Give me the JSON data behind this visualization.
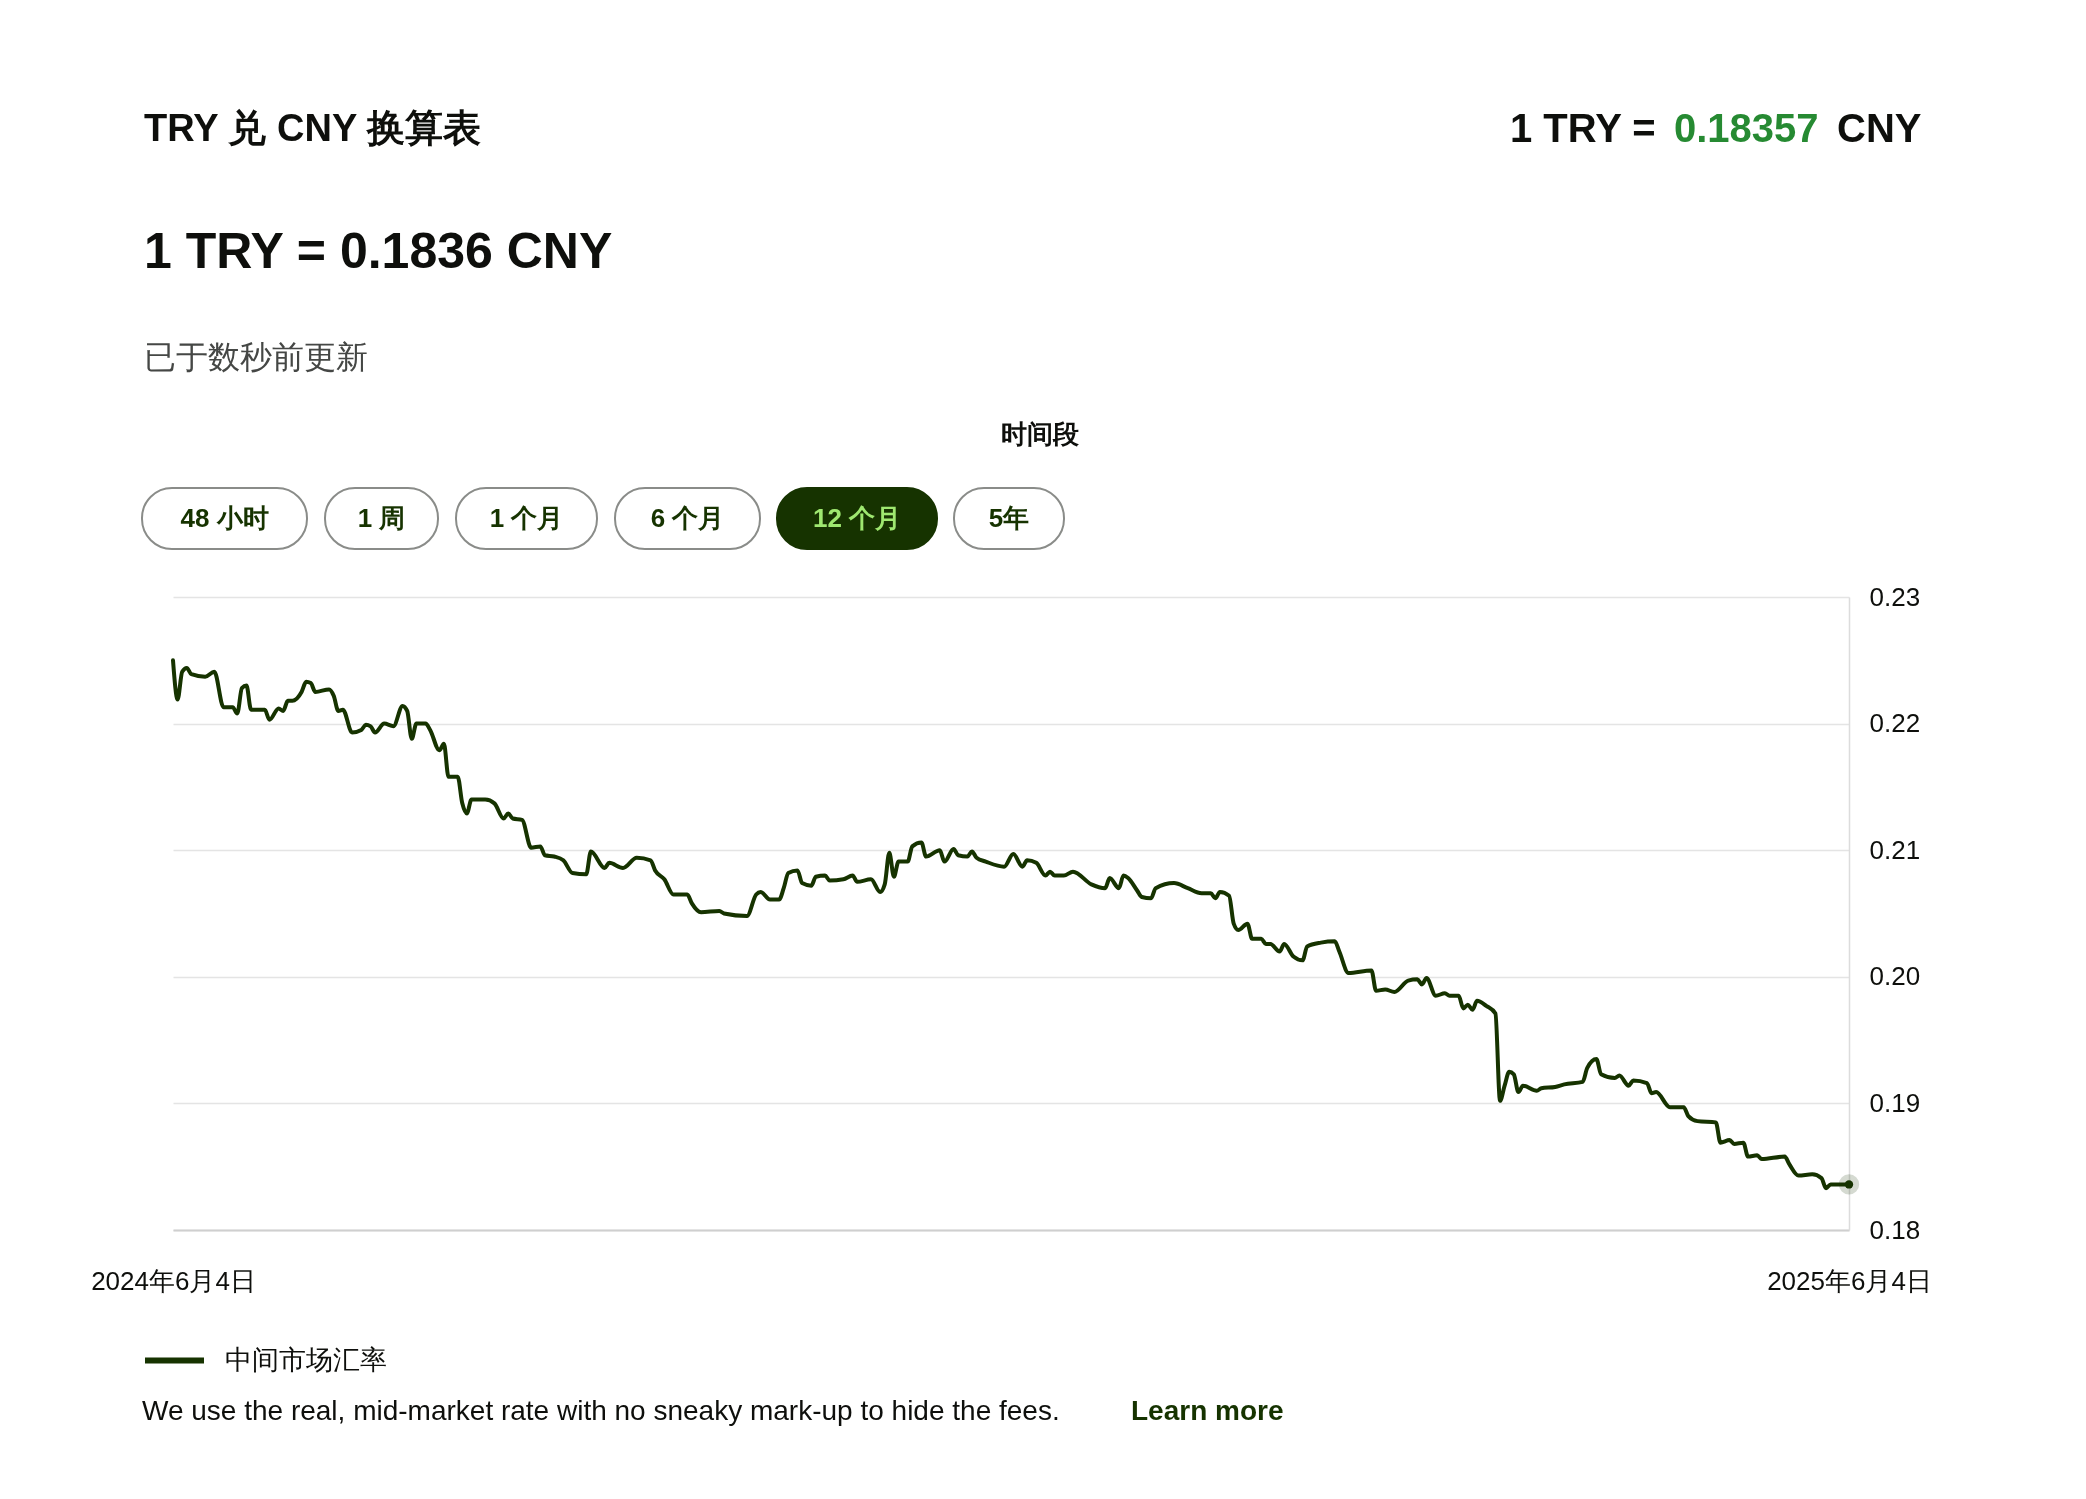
{
  "chart_data": {
    "type": "line",
    "title": "TRY 兑 CNY 换算表",
    "subtitle": "1 TRY = 0.1836 CNY",
    "annotations": [
      "1 TRY =",
      "0.18357",
      "CNY",
      "已于数秒前更新",
      "时间段",
      "48 小时",
      "1 周",
      "1 个月",
      "6 个月",
      "12 个月",
      "5年",
      "We use the real, mid-market rate with no sneaky mark-up to hide the fees.",
      "Learn more"
    ],
    "series": [
      {
        "name": "中间市场汇率",
        "color": "#163300",
        "x": [
          "2024-06-04",
          "2024-06-05",
          "2024-06-06",
          "2024-06-07",
          "2024-06-08",
          "2024-06-11",
          "2024-06-13",
          "2024-06-15",
          "2024-06-17",
          "2024-06-18",
          "2024-06-19",
          "2024-06-20",
          "2024-06-21",
          "2024-06-24",
          "2024-06-25",
          "2024-06-27",
          "2024-06-28",
          "2024-06-29",
          "2024-06-30",
          "2024-07-02",
          "2024-07-03",
          "2024-07-04",
          "2024-07-05",
          "2024-07-08",
          "2024-07-09",
          "2024-07-10",
          "2024-07-11",
          "2024-07-13",
          "2024-07-15",
          "2024-07-16",
          "2024-07-17",
          "2024-07-18",
          "2024-07-20",
          "2024-07-22",
          "2024-07-24",
          "2024-07-25",
          "2024-07-26",
          "2024-07-27",
          "2024-07-29",
          "2024-07-30",
          "2024-08-01",
          "2024-08-02",
          "2024-08-03",
          "2024-08-05",
          "2024-08-06",
          "2024-08-07",
          "2024-08-08",
          "2024-08-11",
          "2024-08-13",
          "2024-08-15",
          "2024-08-16",
          "2024-08-17",
          "2024-08-19",
          "2024-08-21",
          "2024-08-23",
          "2024-08-24",
          "2024-08-26",
          "2024-08-28",
          "2024-08-30",
          "2024-09-02",
          "2024-09-03",
          "2024-09-06",
          "2024-09-07",
          "2024-09-10",
          "2024-09-13",
          "2024-09-16",
          "2024-09-17",
          "2024-09-19",
          "2024-09-21",
          "2024-09-24",
          "2024-09-25",
          "2024-09-27",
          "2024-10-01",
          "2024-10-02",
          "2024-10-07",
          "2024-10-09",
          "2024-10-10",
          "2024-10-12",
          "2024-10-14",
          "2024-10-15",
          "2024-10-16",
          "2024-10-18",
          "2024-10-19",
          "2024-10-21",
          "2024-10-22",
          "2024-10-24",
          "2024-10-25",
          "2024-10-28",
          "2024-10-30",
          "2024-10-31",
          "2024-11-03",
          "2024-11-05",
          "2024-11-06",
          "2024-11-07",
          "2024-11-08",
          "2024-11-09",
          "2024-11-11",
          "2024-11-12",
          "2024-11-14",
          "2024-11-15",
          "2024-11-18",
          "2024-11-19",
          "2024-11-21",
          "2024-11-22",
          "2024-11-24",
          "2024-11-25",
          "2024-11-26",
          "2024-11-28",
          "2024-12-02",
          "2024-12-04",
          "2024-12-06",
          "2024-12-07",
          "2024-12-09",
          "2024-12-11",
          "2024-12-12",
          "2024-12-13",
          "2024-12-15",
          "2024-12-17",
          "2024-12-21",
          "2024-12-24",
          "2024-12-25",
          "2024-12-27",
          "2024-12-28",
          "2024-12-29",
          "2024-12-31",
          "2025-01-01",
          "2025-01-03",
          "2025-01-04",
          "2025-01-08",
          "2025-01-11",
          "2025-01-14",
          "2025-01-16",
          "2025-01-17",
          "2025-01-18",
          "2025-01-20",
          "2025-01-21",
          "2025-01-22",
          "2025-01-24",
          "2025-01-25",
          "2025-01-27",
          "2025-01-28",
          "2025-01-29",
          "2025-01-31",
          "2025-02-01",
          "2025-02-03",
          "2025-02-05",
          "2025-02-06",
          "2025-02-09",
          "2025-02-12",
          "2025-02-13",
          "2025-02-15",
          "2025-02-20",
          "2025-02-21",
          "2025-02-23",
          "2025-02-25",
          "2025-02-28",
          "2025-03-02",
          "2025-03-03",
          "2025-03-04",
          "2025-03-06",
          "2025-03-08",
          "2025-03-09",
          "2025-03-11",
          "2025-03-12",
          "2025-03-13",
          "2025-03-14",
          "2025-03-15",
          "2025-03-17",
          "2025-03-19",
          "2025-03-20",
          "2025-03-21",
          "2025-03-22",
          "2025-03-23",
          "2025-03-24",
          "2025-03-25",
          "2025-03-28",
          "2025-03-29",
          "2025-04-01",
          "2025-04-03",
          "2025-04-07",
          "2025-04-08",
          "2025-04-10",
          "2025-04-11",
          "2025-04-14",
          "2025-04-15",
          "2025-04-17",
          "2025-04-18",
          "2025-04-21",
          "2025-04-22",
          "2025-04-23",
          "2025-04-26",
          "2025-04-29",
          "2025-04-30",
          "2025-05-02",
          "2025-05-06",
          "2025-05-07",
          "2025-05-09",
          "2025-05-10",
          "2025-05-12",
          "2025-05-13",
          "2025-05-15",
          "2025-05-16",
          "2025-05-21",
          "2025-05-22",
          "2025-05-24",
          "2025-05-27",
          "2025-05-29",
          "2025-05-30",
          "2025-05-31",
          "2025-06-04"
        ],
        "values": [
          0.225,
          0.2219,
          0.2241,
          0.2244,
          0.2239,
          0.2237,
          0.2241,
          0.2213,
          0.2213,
          0.2208,
          0.2228,
          0.223,
          0.2211,
          0.2211,
          0.2203,
          0.2212,
          0.221,
          0.2218,
          0.2218,
          0.2225,
          0.2233,
          0.2232,
          0.2225,
          0.2227,
          0.2222,
          0.221,
          0.2211,
          0.2193,
          0.2195,
          0.2199,
          0.2198,
          0.2193,
          0.22,
          0.2198,
          0.2214,
          0.221,
          0.2188,
          0.22,
          0.22,
          0.2195,
          0.2179,
          0.2184,
          0.2158,
          0.2158,
          0.2137,
          0.2129,
          0.214,
          0.214,
          0.2137,
          0.2125,
          0.2129,
          0.2125,
          0.2124,
          0.2102,
          0.2103,
          0.2096,
          0.2095,
          0.2092,
          0.2082,
          0.2081,
          0.2099,
          0.2086,
          0.209,
          0.2086,
          0.2094,
          0.2092,
          0.2084,
          0.2077,
          0.2065,
          0.2065,
          0.2058,
          0.2051,
          0.2052,
          0.205,
          0.2048,
          0.2065,
          0.2067,
          0.2061,
          0.2061,
          0.207,
          0.2082,
          0.2084,
          0.2074,
          0.2072,
          0.2079,
          0.208,
          0.2076,
          0.2077,
          0.208,
          0.2075,
          0.2077,
          0.2067,
          0.2073,
          0.2098,
          0.2079,
          0.2091,
          0.2091,
          0.2103,
          0.2106,
          0.2095,
          0.21,
          0.2091,
          0.2101,
          0.2096,
          0.2095,
          0.2099,
          0.2094,
          0.2091,
          0.2087,
          0.2097,
          0.2087,
          0.2092,
          0.209,
          0.208,
          0.2083,
          0.208,
          0.208,
          0.2083,
          0.2073,
          0.207,
          0.2078,
          0.207,
          0.208,
          0.2078,
          0.2068,
          0.2063,
          0.2062,
          0.207,
          0.2074,
          0.207,
          0.2066,
          0.2066,
          0.2062,
          0.2067,
          0.2064,
          0.2042,
          0.2037,
          0.2042,
          0.203,
          0.203,
          0.2026,
          0.2026,
          0.202,
          0.2026,
          0.2016,
          0.2013,
          0.2024,
          0.2027,
          0.2028,
          0.202,
          0.2003,
          0.2005,
          0.1989,
          0.199,
          0.1988,
          0.1997,
          0.1998,
          0.1994,
          0.1999,
          0.1985,
          0.1987,
          0.1985,
          0.1985,
          0.1975,
          0.1978,
          0.1974,
          0.1981,
          0.1977,
          0.1971,
          0.1902,
          0.1914,
          0.1925,
          0.1923,
          0.1909,
          0.1914,
          0.191,
          0.1912,
          0.1913,
          0.1915,
          0.1917,
          0.1928,
          0.1935,
          0.1923,
          0.192,
          0.1922,
          0.1914,
          0.1918,
          0.1916,
          0.1908,
          0.1909,
          0.1897,
          0.1897,
          0.189,
          0.1886,
          0.1885,
          0.1869,
          0.1871,
          0.1868,
          0.1869,
          0.1858,
          0.1859,
          0.1856,
          0.1858,
          0.1852,
          0.1843,
          0.1844,
          0.1841,
          0.1833,
          0.1836,
          0.1836
        ]
      },
      {
        "type": "scatter",
        "color": "#163300",
        "x": [
          "2025-06-04"
        ],
        "values": [
          0.1836
        ]
      }
    ],
    "xlim": [
      "2024-06-04",
      "2025-06-04"
    ],
    "xticks": [
      {
        "value": "2024-06-04",
        "label": "2024年6月4日"
      },
      {
        "value": "2025-06-04",
        "label": "2025年6月4日"
      }
    ],
    "ylim": [
      0.18,
      0.23
    ],
    "yticks": [
      0.23,
      0.22,
      0.21,
      {
        "value": 0.2,
        "label": "0.20"
      },
      0.19,
      0.18
    ],
    "grid": "y",
    "legend": "bottom",
    "line_style": "solid"
  }
}
